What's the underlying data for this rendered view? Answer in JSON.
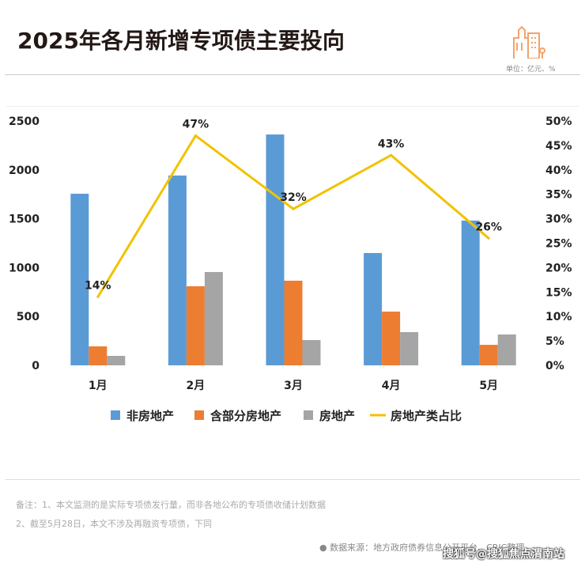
{
  "header": {
    "title": "2025年各月新增专项债主要投向",
    "unit": "单位：亿元、%"
  },
  "chart_data": {
    "type": "bar",
    "categories": [
      "1月",
      "2月",
      "3月",
      "4月",
      "5月"
    ],
    "series": [
      {
        "name": "非房地产",
        "color": "#5b9bd5",
        "values": [
          1756,
          1942,
          2362,
          1149,
          1481
        ]
      },
      {
        "name": "含部分房地产",
        "color": "#ed7d31",
        "values": [
          194,
          809,
          866,
          550,
          210
        ]
      },
      {
        "name": "房地产",
        "color": "#a5a5a5",
        "values": [
          97,
          955,
          259,
          340,
          316
        ]
      }
    ],
    "line": {
      "name": "房地产类占比",
      "color": "#f2c200",
      "values": [
        14,
        47,
        32,
        43,
        26
      ],
      "labels": [
        "14%",
        "47%",
        "32%",
        "43%",
        "26%"
      ]
    },
    "ylim": [
      0,
      2500
    ],
    "yticks": [
      "0",
      "500",
      "1000",
      "1500",
      "2000",
      "2500"
    ],
    "y2lim": [
      0,
      50
    ],
    "y2ticks": [
      "0%",
      "5%",
      "10%",
      "15%",
      "20%",
      "25%",
      "30%",
      "35%",
      "40%",
      "45%",
      "50%"
    ],
    "legend": "bottom"
  },
  "notes": [
    "备注：1、本文监测的是实际专项债发行量，而非各地公布的专项债收储计划数据",
    "2、截至5月28日，本文不涉及再融资专项债，下同"
  ],
  "source": "● 数据来源：地方政府债券信息公开平台、CRIC整理",
  "watermark": "搜狐号@搜狐焦点渭南站"
}
